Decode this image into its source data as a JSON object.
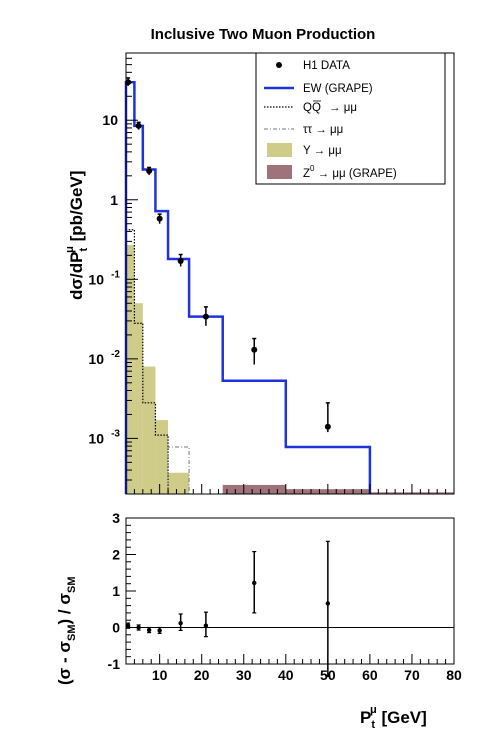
{
  "colors": {
    "upsilon": "#cfcb88",
    "z0": "#a0727a",
    "ew": "#1f32dc",
    "axis": "#000000",
    "data": "#000000"
  },
  "chart_data": [
    {
      "type": "histogram",
      "title": "Inclusive Two Muon Production",
      "ylabel": "dσ/dP_t^μ [pb/GeV]",
      "xlim": [
        2,
        80
      ],
      "ylim": [
        0.0002,
        70
      ],
      "yscale": "log",
      "y_tick_labels": [
        {
          "value": 10,
          "label": "10"
        },
        {
          "value": 1,
          "label": "1"
        },
        {
          "value": 0.1,
          "label": "10",
          "exp": "-1"
        },
        {
          "value": 0.01,
          "label": "10",
          "exp": "-2"
        },
        {
          "value": 0.001,
          "label": "10",
          "exp": "-3"
        }
      ],
      "legend_position": "top-right",
      "legend": [
        {
          "key": "data",
          "label": "H1 DATA"
        },
        {
          "key": "ew",
          "label": "EW (GRAPE)"
        },
        {
          "key": "qq",
          "label": "QQ̄ → μμ"
        },
        {
          "key": "tautau",
          "label": "ττ → μμ"
        },
        {
          "key": "upsilon",
          "label": "Υ → μμ"
        },
        {
          "key": "z0",
          "label": "Z⁰ → μμ (GRAPE)"
        }
      ],
      "series": [
        {
          "key": "data",
          "kind": "points",
          "x": [
            2.5,
            5,
            7.5,
            10,
            15,
            21,
            32.5,
            50
          ],
          "y": [
            30,
            8.5,
            2.3,
            0.58,
            0.17,
            0.034,
            0.013,
            0.0014
          ],
          "yerr_low": [
            27,
            7.6,
            2.05,
            0.5,
            0.145,
            0.026,
            0.0085,
            0.0012
          ],
          "yerr_high": [
            34,
            9.4,
            2.55,
            0.66,
            0.205,
            0.045,
            0.018,
            0.0028
          ]
        },
        {
          "key": "ew",
          "kind": "step",
          "edges": [
            2,
            4,
            6,
            9,
            12,
            17,
            25,
            40,
            60
          ],
          "values": [
            30,
            8.5,
            2.4,
            0.72,
            0.18,
            0.034,
            0.0053,
            0.00078
          ]
        },
        {
          "key": "qq",
          "kind": "step",
          "edges": [
            2,
            4,
            6,
            9,
            12
          ],
          "values": [
            0.42,
            0.028,
            0.0028,
            0.0011
          ]
        },
        {
          "key": "tautau",
          "kind": "step",
          "edges": [
            12,
            17
          ],
          "values": [
            0.00078
          ]
        },
        {
          "key": "upsilon",
          "kind": "filled_histogram",
          "edges": [
            2,
            4,
            6,
            9,
            12,
            17
          ],
          "values": [
            0.27,
            0.05,
            0.008,
            0.0017,
            0.00037
          ]
        },
        {
          "key": "z0",
          "kind": "filled_histogram",
          "edges": [
            25,
            40,
            60,
            80
          ],
          "values": [
            0.00026,
            0.00023,
            0.00021
          ]
        }
      ]
    },
    {
      "type": "scatter",
      "ylabel": "(σ - σ_SM) / σ_SM",
      "xlabel": "P_t^μ [GeV]",
      "xlim": [
        2,
        80
      ],
      "ylim": [
        -1,
        3
      ],
      "x_ticks": [
        10,
        20,
        30,
        40,
        50,
        60,
        70,
        80
      ],
      "y_ticks": [
        -1,
        0,
        1,
        2,
        3
      ],
      "reference_line": 0,
      "points": {
        "x": [
          2.5,
          5,
          7.5,
          10,
          15,
          21,
          32.5,
          50
        ],
        "y": [
          0.05,
          0.0,
          -0.07,
          -0.08,
          0.12,
          0.05,
          1.22,
          0.66
        ],
        "err_low": [
          0.07,
          0.07,
          0.07,
          0.08,
          0.2,
          0.3,
          0.82,
          2.0
        ],
        "err_high": [
          0.07,
          0.07,
          0.07,
          0.08,
          0.25,
          0.37,
          0.86,
          1.7
        ]
      }
    }
  ],
  "text": {
    "title": "Inclusive Two Muon Production",
    "top_ylabel_main": "dσ/dP",
    "top_ylabel_sub": "t",
    "top_ylabel_sup": "μ",
    "top_ylabel_unit": " [pb/GeV]",
    "bottom_ylabel": "(σ - σ",
    "bottom_ylabel_sub": "SM",
    "bottom_ylabel_mid": ") / σ",
    "bottom_ylabel_sub2": "SM",
    "xlabel_main": "P",
    "xlabel_sub": "t",
    "xlabel_sup": "μ",
    "xlabel_unit": "  [GeV]",
    "legend": {
      "data": "H1 DATA",
      "ew": "EW (GRAPE)",
      "qq_tail": "→ μμ",
      "tautau": "ττ  →  μμ",
      "upsilon": "Υ  →  μμ",
      "z0_z": "Z",
      "z0_sup": "0",
      "z0_tail": " → μμ (GRAPE)"
    }
  }
}
